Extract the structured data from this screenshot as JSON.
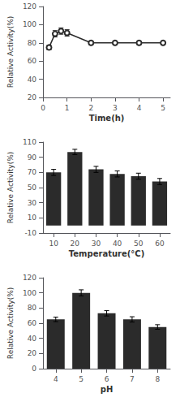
{
  "chart_data": [
    {
      "type": "line",
      "x": [
        0.25,
        0.5,
        0.75,
        1.0,
        2.0,
        3.0,
        4.0,
        5.0
      ],
      "values": [
        75,
        90,
        93,
        91,
        80,
        80,
        80,
        80
      ],
      "yerr": [
        2.5,
        3.5,
        3.5,
        3.5,
        2.0,
        2.0,
        2.0,
        2.0
      ],
      "xlabel": "Time(h)",
      "ylabel": "Relative Activity(%)",
      "xlim": [
        0,
        5.3
      ],
      "xticks": [
        0,
        1,
        2,
        3,
        4,
        5
      ],
      "ylim": [
        20,
        120
      ],
      "yticks": [
        20,
        40,
        60,
        80,
        100,
        120
      ],
      "color": "#2b2b2b",
      "marker": "circle",
      "grid": false
    },
    {
      "type": "bar",
      "categories": [
        "10",
        "20",
        "30",
        "40",
        "50",
        "60"
      ],
      "values": [
        70,
        97,
        74,
        68,
        65,
        58
      ],
      "yerr": [
        4,
        3.5,
        4,
        4,
        4,
        4
      ],
      "xlabel": "Temperature(°C)",
      "ylabel": "Relative Activity(%)",
      "ylim": [
        -10,
        110
      ],
      "yticks": [
        -10,
        10,
        30,
        50,
        70,
        90,
        110
      ],
      "color": "#2b2b2b",
      "grid": false
    },
    {
      "type": "bar",
      "categories": [
        "4",
        "5",
        "6",
        "7",
        "8"
      ],
      "values": [
        65,
        100,
        73,
        65,
        55
      ],
      "yerr": [
        3,
        4,
        3.5,
        3.5,
        3
      ],
      "xlabel": "pH",
      "ylabel": "Relative Activity(%)",
      "ylim": [
        0,
        120
      ],
      "yticks": [
        0,
        20,
        40,
        60,
        80,
        100,
        120
      ],
      "color": "#2b2b2b",
      "grid": false
    }
  ]
}
